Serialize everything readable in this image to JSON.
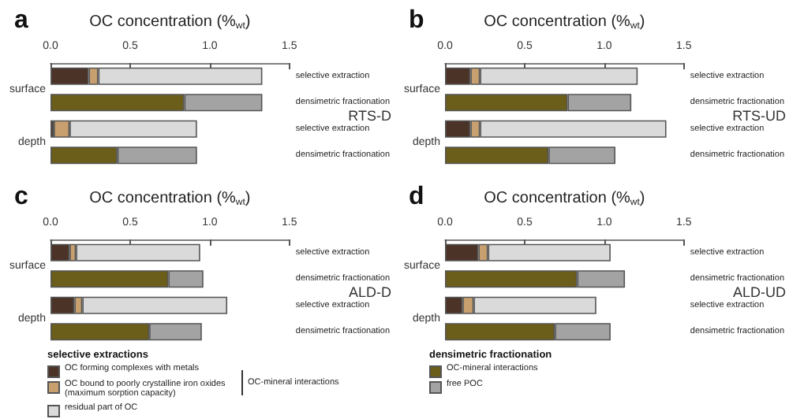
{
  "chart_data": [
    {
      "type": "bar",
      "title": "a",
      "xlabel": "OC concentration (%$_{wt}$)",
      "orientation": "horizontal",
      "stacked": true,
      "categories": [
        "selective extraction",
        "densimetric fractionation",
        "selective extraction",
        "densimetric fractionation"
      ],
      "xlim": [
        0,
        1.5
      ],
      "xticks": [
        {
          "value": 0,
          "label": "0.0"
        },
        {
          "value": 0.5,
          "label": "0.5"
        },
        {
          "value": 1,
          "label": "1.0"
        },
        {
          "value": 1.5,
          "label": "1.5"
        }
      ],
      "grid": false,
      "legend": "bottom",
      "legend_title": "selective extractions",
      "annotations": [
        "surface",
        "depth",
        "RTS-D",
        "OC-mineral interactions"
      ],
      "series": [
        {
          "name": "OC forming complexes with metals",
          "color": "#4b3327",
          "values": [
            0.24,
            null,
            0.02,
            null
          ]
        },
        {
          "name": "OC bound to poorly crystalline iron oxides (maximum sorption capacity)",
          "color": "#c89f6e",
          "values": [
            0.06,
            null,
            0.1,
            null
          ]
        },
        {
          "name": "residual part of OC",
          "color": "#dadada",
          "values": [
            1.03,
            null,
            0.8,
            null
          ]
        },
        {
          "color": "#6b5d1a",
          "values": [
            null,
            0.84,
            null,
            0.42
          ]
        },
        {
          "color": "#a3a3a3",
          "values": [
            null,
            0.49,
            null,
            0.5
          ]
        }
      ]
    },
    {
      "type": "bar",
      "title": "b",
      "xlabel": "OC concentration (%$_{wt}$)",
      "orientation": "horizontal",
      "stacked": true,
      "categories": [
        "selective extraction",
        "densimetric fractionation",
        "selective extraction",
        "densimetric fractionation"
      ],
      "xlim": [
        0,
        1.5
      ],
      "xticks": [
        {
          "value": 0,
          "label": "0.0"
        },
        {
          "value": 0.5,
          "label": "0.5"
        },
        {
          "value": 1,
          "label": "1.0"
        },
        {
          "value": 1.5,
          "label": "1.5"
        }
      ],
      "grid": false,
      "legend": "bottom",
      "legend_title": "densimetric fractionation",
      "annotations": [
        "surface",
        "depth",
        "RTS-UD"
      ],
      "series": [
        {
          "color": "#4b3327",
          "values": [
            0.16,
            null,
            0.16,
            null
          ]
        },
        {
          "color": "#c89f6e",
          "values": [
            0.06,
            null,
            0.06,
            null
          ]
        },
        {
          "color": "#dadada",
          "values": [
            0.99,
            null,
            1.17,
            null
          ]
        },
        {
          "name": "OC-mineral interactions",
          "color": "#6b5d1a",
          "values": [
            null,
            0.77,
            null,
            0.65
          ]
        },
        {
          "name": "free POC",
          "color": "#a3a3a3",
          "values": [
            null,
            0.4,
            null,
            0.42
          ]
        }
      ]
    },
    {
      "type": "bar",
      "title": "c",
      "xlabel": "OC concentration (%$_{wt}$)",
      "orientation": "horizontal",
      "stacked": true,
      "categories": [
        "selective extraction",
        "densimetric fractionation",
        "selective extraction",
        "densimetric fractionation"
      ],
      "xlim": [
        0,
        1.5
      ],
      "xticks": [
        {
          "value": 0,
          "label": "0.0"
        },
        {
          "value": 0.5,
          "label": "0.5"
        },
        {
          "value": 1,
          "label": "1.0"
        },
        {
          "value": 1.5,
          "label": "1.5"
        }
      ],
      "grid": false,
      "annotations": [
        "surface",
        "depth",
        "ALD-D"
      ],
      "series": [
        {
          "color": "#4b3327",
          "values": [
            0.12,
            null,
            0.15,
            null
          ]
        },
        {
          "color": "#c89f6e",
          "values": [
            0.04,
            null,
            0.05,
            null
          ]
        },
        {
          "color": "#dadada",
          "values": [
            0.78,
            null,
            0.91,
            null
          ]
        },
        {
          "color": "#6b5d1a",
          "values": [
            null,
            0.74,
            null,
            0.62
          ]
        },
        {
          "color": "#a3a3a3",
          "values": [
            null,
            0.22,
            null,
            0.33
          ]
        }
      ]
    },
    {
      "type": "bar",
      "title": "d",
      "xlabel": "OC concentration (%$_{wt}$)",
      "orientation": "horizontal",
      "stacked": true,
      "categories": [
        "selective extraction",
        "densimetric fractionation",
        "selective extraction",
        "densimetric fractionation"
      ],
      "xlim": [
        0,
        1.5
      ],
      "xticks": [
        {
          "value": 0,
          "label": "0.0"
        },
        {
          "value": 0.5,
          "label": "0.5"
        },
        {
          "value": 1,
          "label": "1.0"
        },
        {
          "value": 1.5,
          "label": "1.5"
        }
      ],
      "grid": false,
      "annotations": [
        "surface",
        "depth",
        "ALD-UD"
      ],
      "series": [
        {
          "color": "#4b3327",
          "values": [
            0.21,
            null,
            0.11,
            null
          ]
        },
        {
          "color": "#c89f6e",
          "values": [
            0.06,
            null,
            0.07,
            null
          ]
        },
        {
          "color": "#dadada",
          "values": [
            0.77,
            null,
            0.77,
            null
          ]
        },
        {
          "color": "#6b5d1a",
          "values": [
            null,
            0.83,
            null,
            0.69
          ]
        },
        {
          "color": "#a3a3a3",
          "values": [
            null,
            0.3,
            null,
            0.35
          ]
        }
      ]
    }
  ]
}
